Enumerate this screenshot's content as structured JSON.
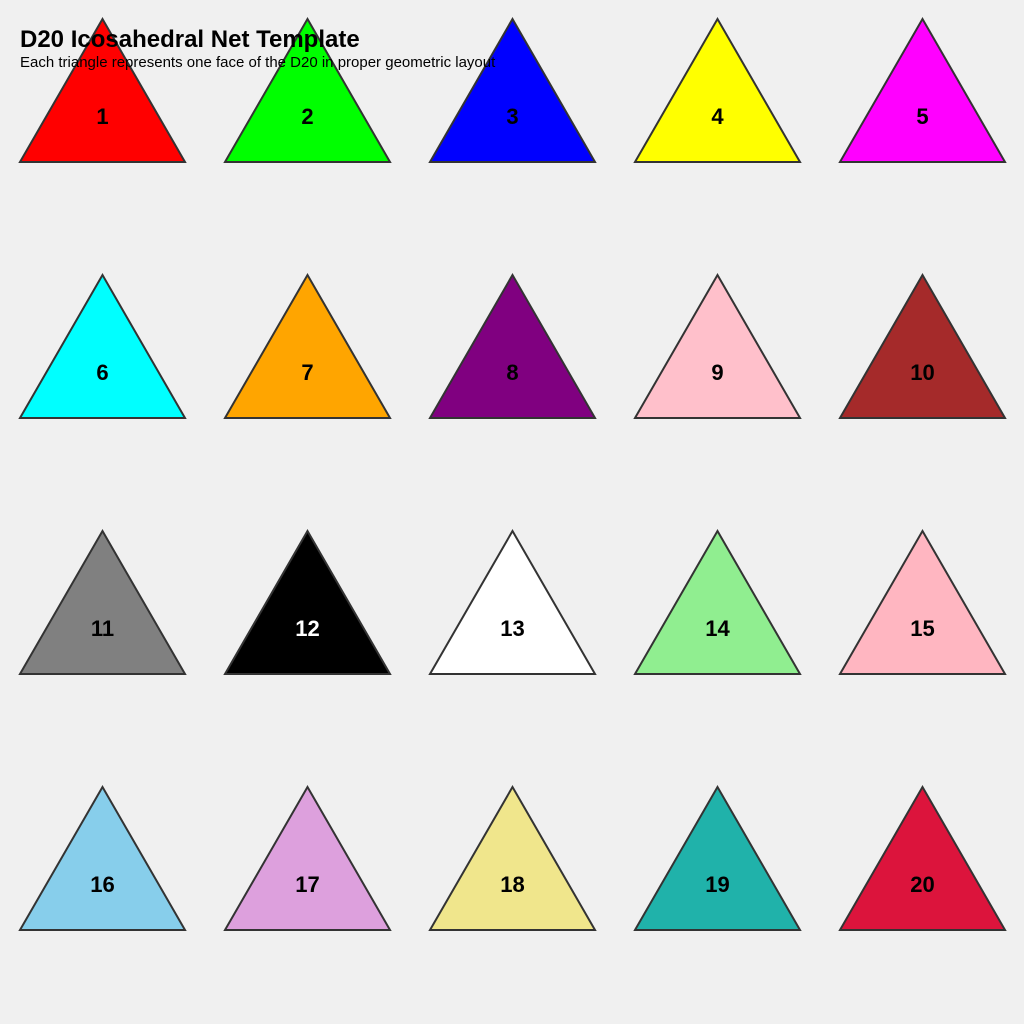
{
  "header": {
    "title": "D20 Icosahedral Net Template",
    "subtitle": "Each triangle represents one face of the D20 in proper geometric layout"
  },
  "colors": {
    "background": "#f0f0f0",
    "stroke": "#333333",
    "label_dark": "#000000",
    "label_light": "#ffffff"
  },
  "faces": [
    {
      "number": "1",
      "fill": "#ff0000",
      "label_color": "#000000"
    },
    {
      "number": "2",
      "fill": "#00ff00",
      "label_color": "#000000"
    },
    {
      "number": "3",
      "fill": "#0000ff",
      "label_color": "#000000"
    },
    {
      "number": "4",
      "fill": "#ffff00",
      "label_color": "#000000"
    },
    {
      "number": "5",
      "fill": "#ff00ff",
      "label_color": "#000000"
    },
    {
      "number": "6",
      "fill": "#00ffff",
      "label_color": "#000000"
    },
    {
      "number": "7",
      "fill": "#ffa500",
      "label_color": "#000000"
    },
    {
      "number": "8",
      "fill": "#800080",
      "label_color": "#000000"
    },
    {
      "number": "9",
      "fill": "#ffc0cb",
      "label_color": "#000000"
    },
    {
      "number": "10",
      "fill": "#a52a2a",
      "label_color": "#000000"
    },
    {
      "number": "11",
      "fill": "#808080",
      "label_color": "#000000"
    },
    {
      "number": "12",
      "fill": "#000000",
      "label_color": "#ffffff"
    },
    {
      "number": "13",
      "fill": "#ffffff",
      "label_color": "#000000"
    },
    {
      "number": "14",
      "fill": "#90ee90",
      "label_color": "#000000"
    },
    {
      "number": "15",
      "fill": "#ffb6c1",
      "label_color": "#000000"
    },
    {
      "number": "16",
      "fill": "#87ceeb",
      "label_color": "#000000"
    },
    {
      "number": "17",
      "fill": "#dda0dd",
      "label_color": "#000000"
    },
    {
      "number": "18",
      "fill": "#f0e68c",
      "label_color": "#000000"
    },
    {
      "number": "19",
      "fill": "#20b2aa",
      "label_color": "#000000"
    },
    {
      "number": "20",
      "fill": "#dc143c",
      "label_color": "#000000"
    }
  ]
}
